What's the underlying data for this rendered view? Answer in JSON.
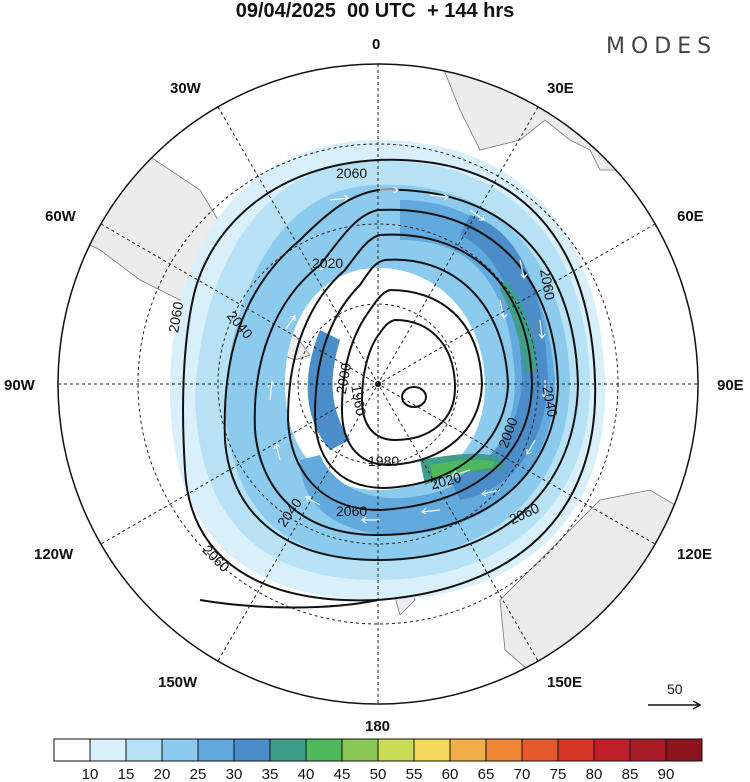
{
  "header": {
    "title": "09/04/2025  00 UTC  + 144 hrs",
    "logo": "MODES"
  },
  "lon_labels": [
    "0",
    "30E",
    "60E",
    "90E",
    "120E",
    "150E",
    "180",
    "150W",
    "120W",
    "90W",
    "60W",
    "30W"
  ],
  "contour_labels": [
    "2060",
    "2060",
    "2020",
    "2060",
    "2040",
    "2000",
    "1960",
    "2040",
    "2000",
    "1980",
    "2020",
    "2040",
    "2060",
    "2060",
    "2060"
  ],
  "vector_reference": "50",
  "colorbar": {
    "labels": [
      "10",
      "15",
      "20",
      "25",
      "30",
      "35",
      "40",
      "45",
      "50",
      "55",
      "60",
      "65",
      "70",
      "75",
      "80",
      "85",
      "90"
    ],
    "colors": [
      "#ffffff",
      "#d9f0fb",
      "#b7e2f6",
      "#8ccbee",
      "#62a9dd",
      "#4a8dc8",
      "#3f9e8a",
      "#4fb85a",
      "#8cc855",
      "#c9dc55",
      "#f5d95a",
      "#f2ad48",
      "#ef8535",
      "#e45a2d",
      "#d73528",
      "#c0202a",
      "#a81a26",
      "#8e1520"
    ]
  }
}
